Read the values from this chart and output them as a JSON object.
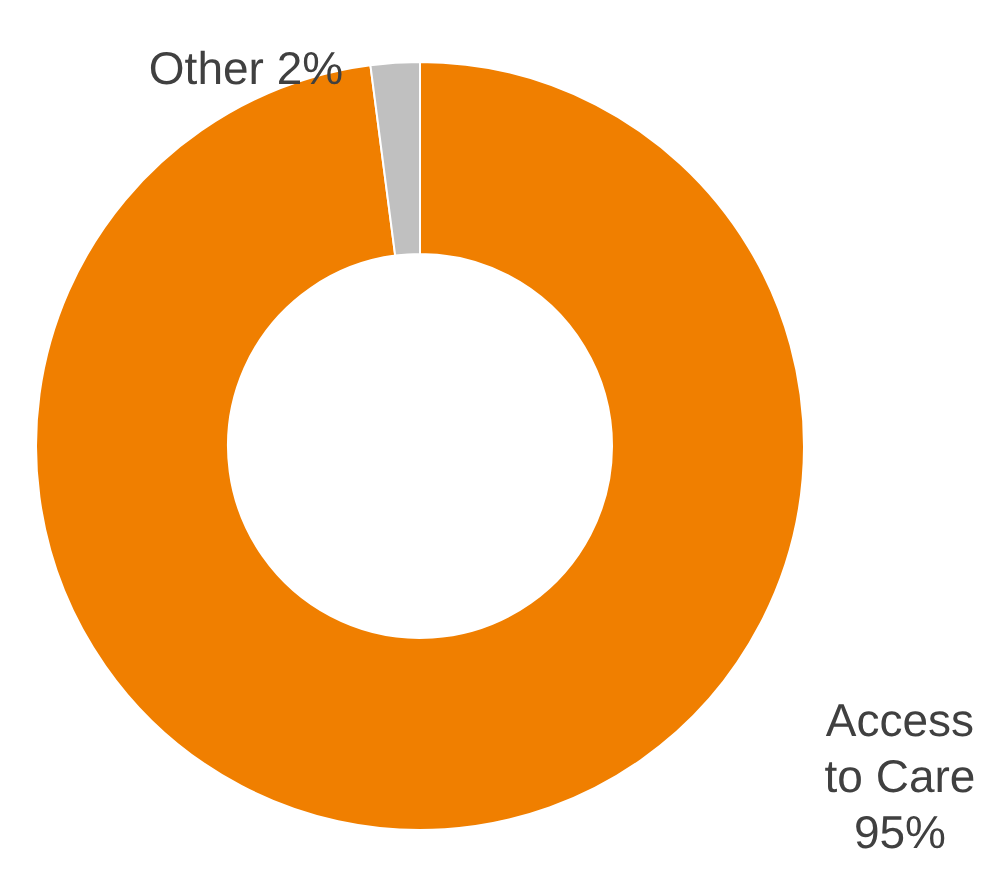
{
  "chart_data": {
    "type": "donut",
    "categories": [
      "Access to Care",
      "Other"
    ],
    "values": [
      95,
      2
    ],
    "colors": [
      "#f07f00",
      "#c0c0c0"
    ],
    "value_labels": [
      "95%",
      "2%"
    ],
    "legend": false
  }
}
